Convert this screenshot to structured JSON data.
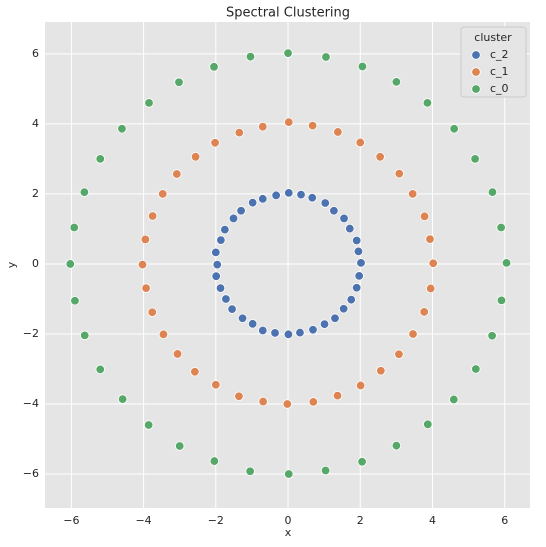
{
  "chart_data": {
    "type": "scatter",
    "title": "Spectral Clustering",
    "x_label": "x",
    "y_label": "y",
    "legend_title": "cluster",
    "legend_position": "upper right",
    "grid": true,
    "xlim": [
      -6.73,
      6.7
    ],
    "ylim": [
      -6.97,
      6.91
    ],
    "xticks": [
      {
        "value": -6,
        "label": "−6"
      },
      {
        "value": -4,
        "label": "−4"
      },
      {
        "value": -2,
        "label": "−2"
      },
      0,
      2,
      4,
      6
    ],
    "yticks": [
      {
        "value": -6,
        "label": "−6"
      },
      {
        "value": -4,
        "label": "−4"
      },
      {
        "value": -2,
        "label": "−2"
      },
      0,
      2,
      4,
      6
    ],
    "series": [
      {
        "name": "c_2",
        "color": "#4c72b0",
        "x": [
          2.02,
          1.95,
          1.9,
          1.71,
          1.55,
          1.27,
          1.03,
          0.67,
          0.36,
          0.02,
          -0.33,
          -0.7,
          -0.98,
          -1.3,
          -1.51,
          -1.75,
          -1.86,
          -2.0,
          -1.96,
          -1.99,
          -1.87,
          -1.72,
          -1.55,
          -1.26,
          -0.98,
          -0.7,
          -0.36,
          0.01,
          0.33,
          0.69,
          1.01,
          1.3,
          1.54,
          1.75,
          1.9,
          1.97
        ],
        "values": [
          0.03,
          0.36,
          0.67,
          1.01,
          1.3,
          1.52,
          1.74,
          1.89,
          1.98,
          2.03,
          1.96,
          1.86,
          1.75,
          1.52,
          1.3,
          0.98,
          0.68,
          0.33,
          -0.02,
          -0.35,
          -0.69,
          -1.0,
          -1.29,
          -1.55,
          -1.71,
          -1.9,
          -1.97,
          -2.01,
          -1.96,
          -1.88,
          -1.72,
          -1.55,
          -1.28,
          -1.02,
          -0.68,
          -0.34
        ]
      },
      {
        "name": "c_1",
        "color": "#dd8452",
        "x": [
          4.02,
          3.93,
          3.78,
          3.45,
          3.08,
          2.55,
          2.0,
          1.38,
          0.68,
          0.02,
          -0.7,
          -1.35,
          -2.02,
          -2.56,
          -3.08,
          -3.47,
          -3.75,
          -3.95,
          -4.03,
          -3.93,
          -3.76,
          -3.45,
          -3.06,
          -2.58,
          -2.0,
          -1.36,
          -0.69,
          -0.02,
          0.7,
          1.37,
          2.01,
          2.57,
          3.07,
          3.46,
          3.77,
          3.95
        ],
        "values": [
          0.02,
          0.71,
          1.36,
          2.0,
          2.58,
          3.06,
          3.47,
          3.77,
          3.95,
          4.05,
          3.92,
          3.75,
          3.46,
          3.06,
          2.57,
          2.0,
          1.37,
          0.7,
          -0.02,
          -0.69,
          -1.38,
          -2.01,
          -2.57,
          -3.08,
          -3.45,
          -3.78,
          -3.93,
          -4.0,
          -3.94,
          -3.76,
          -3.47,
          -3.05,
          -2.58,
          -2.0,
          -1.37,
          -0.7
        ]
      },
      {
        "name": "c_0",
        "color": "#55a868",
        "x": [
          6.05,
          5.9,
          5.66,
          5.18,
          4.6,
          3.86,
          3.0,
          2.06,
          1.05,
          0.0,
          -1.04,
          -2.05,
          -3.02,
          -3.85,
          -4.6,
          -5.2,
          -5.64,
          -5.92,
          -6.03,
          -5.9,
          -5.63,
          -5.2,
          -4.58,
          -3.86,
          -3.0,
          -2.04,
          -1.05,
          0.02,
          1.04,
          2.05,
          3.0,
          3.87,
          4.59,
          5.2,
          5.65,
          5.91
        ],
        "values": [
          0.03,
          1.04,
          2.05,
          3.0,
          3.86,
          4.6,
          5.2,
          5.64,
          5.91,
          6.02,
          5.92,
          5.63,
          5.19,
          4.6,
          3.86,
          3.0,
          2.05,
          1.04,
          0.0,
          -1.05,
          -2.04,
          -3.01,
          -3.86,
          -4.6,
          -5.2,
          -5.63,
          -5.92,
          -6.0,
          -5.9,
          -5.65,
          -5.19,
          -4.58,
          -3.87,
          -3.0,
          -2.05,
          -1.04
        ]
      }
    ]
  }
}
